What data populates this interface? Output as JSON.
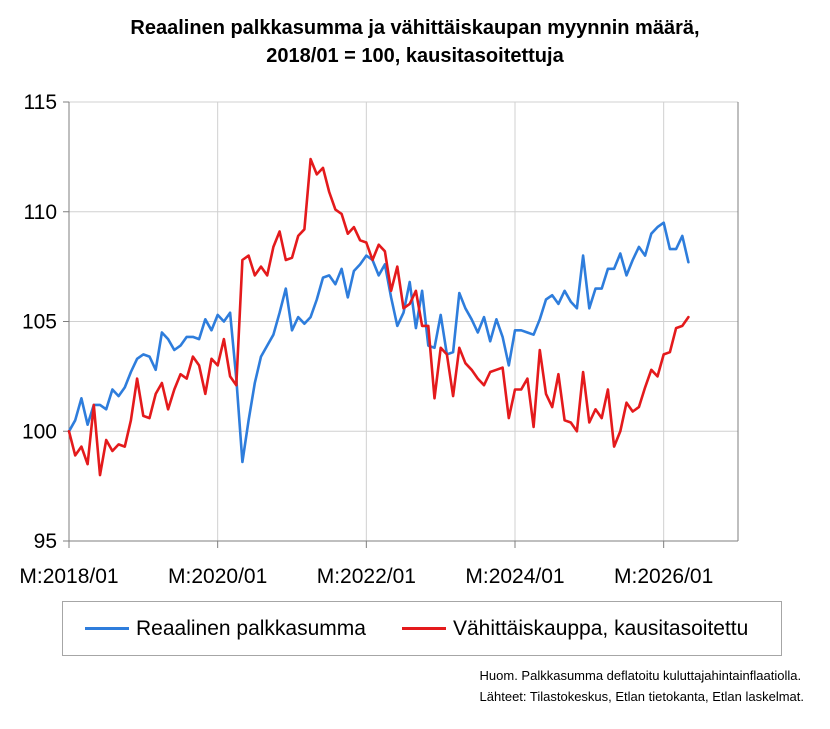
{
  "chart_data": {
    "type": "line",
    "title_lines": [
      "Reaalinen palkkasumma ja vähittäiskaupan myynnin määrä,",
      "2018/01 = 100, kausitasoitettuja"
    ],
    "xlabel": "",
    "ylabel": "",
    "ylim": [
      95,
      115
    ],
    "yticks": [
      95,
      100,
      105,
      110,
      115
    ],
    "xlim": [
      "2018-01",
      "2026-12"
    ],
    "xticks": [
      {
        "date": "2018-01",
        "label": "M:2018/01"
      },
      {
        "date": "2020-01",
        "label": "M:2020/01"
      },
      {
        "date": "2022-01",
        "label": "M:2022/01"
      },
      {
        "date": "2024-01",
        "label": "M:2024/01"
      },
      {
        "date": "2026-01",
        "label": "M:2026/01"
      }
    ],
    "grid": "horizontal",
    "legend_position": "bottom",
    "series": [
      {
        "name": "Reaalinen palkkasumma",
        "color": "#2e7ddc",
        "points": [
          [
            "2018-01",
            100.0
          ],
          [
            "2018-02",
            100.5
          ],
          [
            "2018-03",
            101.5
          ],
          [
            "2018-04",
            100.3
          ],
          [
            "2018-05",
            101.2
          ],
          [
            "2018-06",
            101.2
          ],
          [
            "2018-07",
            101.0
          ],
          [
            "2018-08",
            101.9
          ],
          [
            "2018-09",
            101.6
          ],
          [
            "2018-10",
            102.0
          ],
          [
            "2018-11",
            102.7
          ],
          [
            "2018-12",
            103.3
          ],
          [
            "2019-01",
            103.5
          ],
          [
            "2019-02",
            103.4
          ],
          [
            "2019-03",
            102.8
          ],
          [
            "2019-04",
            104.5
          ],
          [
            "2019-05",
            104.2
          ],
          [
            "2019-06",
            103.7
          ],
          [
            "2019-07",
            103.9
          ],
          [
            "2019-08",
            104.3
          ],
          [
            "2019-09",
            104.3
          ],
          [
            "2019-10",
            104.2
          ],
          [
            "2019-11",
            105.1
          ],
          [
            "2019-12",
            104.6
          ],
          [
            "2020-01",
            105.3
          ],
          [
            "2020-02",
            105.0
          ],
          [
            "2020-03",
            105.4
          ],
          [
            "2020-04",
            102.4
          ],
          [
            "2020-05",
            98.6
          ],
          [
            "2020-06",
            100.5
          ],
          [
            "2020-07",
            102.2
          ],
          [
            "2020-08",
            103.4
          ],
          [
            "2020-09",
            103.9
          ],
          [
            "2020-10",
            104.4
          ],
          [
            "2020-11",
            105.4
          ],
          [
            "2020-12",
            106.5
          ],
          [
            "2021-01",
            104.6
          ],
          [
            "2021-02",
            105.2
          ],
          [
            "2021-03",
            104.9
          ],
          [
            "2021-04",
            105.2
          ],
          [
            "2021-05",
            106.0
          ],
          [
            "2021-06",
            107.0
          ],
          [
            "2021-07",
            107.1
          ],
          [
            "2021-08",
            106.7
          ],
          [
            "2021-09",
            107.4
          ],
          [
            "2021-10",
            106.1
          ],
          [
            "2021-11",
            107.3
          ],
          [
            "2021-12",
            107.6
          ],
          [
            "2022-01",
            108.0
          ],
          [
            "2022-02",
            107.8
          ],
          [
            "2022-03",
            107.1
          ],
          [
            "2022-04",
            107.6
          ],
          [
            "2022-05",
            106.1
          ],
          [
            "2022-06",
            104.8
          ],
          [
            "2022-07",
            105.4
          ],
          [
            "2022-08",
            106.8
          ],
          [
            "2022-09",
            104.7
          ],
          [
            "2022-10",
            106.4
          ],
          [
            "2022-11",
            103.9
          ],
          [
            "2022-12",
            103.8
          ],
          [
            "2023-01",
            105.3
          ],
          [
            "2023-02",
            103.5
          ],
          [
            "2023-03",
            103.6
          ],
          [
            "2023-04",
            106.3
          ],
          [
            "2023-05",
            105.6
          ],
          [
            "2023-06",
            105.1
          ],
          [
            "2023-07",
            104.5
          ],
          [
            "2023-08",
            105.2
          ],
          [
            "2023-09",
            104.1
          ],
          [
            "2023-10",
            105.1
          ],
          [
            "2023-11",
            104.3
          ],
          [
            "2023-12",
            103.0
          ],
          [
            "2024-01",
            104.6
          ],
          [
            "2024-02",
            104.6
          ],
          [
            "2024-03",
            104.5
          ],
          [
            "2024-04",
            104.4
          ],
          [
            "2024-05",
            105.1
          ],
          [
            "2024-06",
            106.0
          ],
          [
            "2024-07",
            106.2
          ],
          [
            "2024-08",
            105.8
          ],
          [
            "2024-09",
            106.4
          ],
          [
            "2024-10",
            105.9
          ],
          [
            "2024-11",
            105.6
          ],
          [
            "2024-12",
            108.0
          ],
          [
            "2025-01",
            105.6
          ],
          [
            "2025-02",
            106.5
          ],
          [
            "2025-03",
            106.5
          ],
          [
            "2025-04",
            107.4
          ],
          [
            "2025-05",
            107.4
          ],
          [
            "2025-06",
            108.1
          ],
          [
            "2025-07",
            107.1
          ],
          [
            "2025-08",
            107.8
          ],
          [
            "2025-09",
            108.4
          ],
          [
            "2025-10",
            108.0
          ],
          [
            "2025-11",
            109.0
          ],
          [
            "2025-12",
            109.3
          ],
          [
            "2026-01",
            109.5
          ],
          [
            "2026-02",
            108.3
          ],
          [
            "2026-03",
            108.3
          ],
          [
            "2026-04",
            108.9
          ],
          [
            "2026-05",
            107.7
          ]
        ]
      },
      {
        "name": "Vähittäiskauppa, kausitasoitettu",
        "color": "#e41a1c",
        "points": [
          [
            "2018-01",
            100.0
          ],
          [
            "2018-02",
            98.9
          ],
          [
            "2018-03",
            99.3
          ],
          [
            "2018-04",
            98.5
          ],
          [
            "2018-05",
            101.2
          ],
          [
            "2018-06",
            98.0
          ],
          [
            "2018-07",
            99.6
          ],
          [
            "2018-08",
            99.1
          ],
          [
            "2018-09",
            99.4
          ],
          [
            "2018-10",
            99.3
          ],
          [
            "2018-11",
            100.5
          ],
          [
            "2018-12",
            102.4
          ],
          [
            "2019-01",
            100.7
          ],
          [
            "2019-02",
            100.6
          ],
          [
            "2019-03",
            101.7
          ],
          [
            "2019-04",
            102.2
          ],
          [
            "2019-05",
            101.0
          ],
          [
            "2019-06",
            101.9
          ],
          [
            "2019-07",
            102.6
          ],
          [
            "2019-08",
            102.4
          ],
          [
            "2019-09",
            103.4
          ],
          [
            "2019-10",
            103.0
          ],
          [
            "2019-11",
            101.7
          ],
          [
            "2019-12",
            103.3
          ],
          [
            "2020-01",
            103.0
          ],
          [
            "2020-02",
            104.2
          ],
          [
            "2020-03",
            102.5
          ],
          [
            "2020-04",
            102.1
          ],
          [
            "2020-05",
            107.8
          ],
          [
            "2020-06",
            108.0
          ],
          [
            "2020-07",
            107.1
          ],
          [
            "2020-08",
            107.5
          ],
          [
            "2020-09",
            107.1
          ],
          [
            "2020-10",
            108.4
          ],
          [
            "2020-11",
            109.1
          ],
          [
            "2020-12",
            107.8
          ],
          [
            "2021-01",
            107.9
          ],
          [
            "2021-02",
            108.9
          ],
          [
            "2021-03",
            109.2
          ],
          [
            "2021-04",
            112.4
          ],
          [
            "2021-05",
            111.7
          ],
          [
            "2021-06",
            112.0
          ],
          [
            "2021-07",
            110.9
          ],
          [
            "2021-08",
            110.1
          ],
          [
            "2021-09",
            109.9
          ],
          [
            "2021-10",
            109.0
          ],
          [
            "2021-11",
            109.3
          ],
          [
            "2021-12",
            108.7
          ],
          [
            "2022-01",
            108.6
          ],
          [
            "2022-02",
            107.8
          ],
          [
            "2022-03",
            108.5
          ],
          [
            "2022-04",
            108.2
          ],
          [
            "2022-05",
            106.4
          ],
          [
            "2022-06",
            107.5
          ],
          [
            "2022-07",
            105.6
          ],
          [
            "2022-08",
            105.8
          ],
          [
            "2022-09",
            106.4
          ],
          [
            "2022-10",
            104.8
          ],
          [
            "2022-11",
            104.8
          ],
          [
            "2022-12",
            101.5
          ],
          [
            "2023-01",
            103.8
          ],
          [
            "2023-02",
            103.5
          ],
          [
            "2023-03",
            101.6
          ],
          [
            "2023-04",
            103.8
          ],
          [
            "2023-05",
            103.1
          ],
          [
            "2023-06",
            102.8
          ],
          [
            "2023-07",
            102.4
          ],
          [
            "2023-08",
            102.1
          ],
          [
            "2023-09",
            102.7
          ],
          [
            "2023-10",
            102.8
          ],
          [
            "2023-11",
            102.9
          ],
          [
            "2023-12",
            100.6
          ],
          [
            "2024-01",
            101.9
          ],
          [
            "2024-02",
            101.9
          ],
          [
            "2024-03",
            102.4
          ],
          [
            "2024-04",
            100.2
          ],
          [
            "2024-05",
            103.7
          ],
          [
            "2024-06",
            101.7
          ],
          [
            "2024-07",
            101.1
          ],
          [
            "2024-08",
            102.6
          ],
          [
            "2024-09",
            100.5
          ],
          [
            "2024-10",
            100.4
          ],
          [
            "2024-11",
            100.0
          ],
          [
            "2024-12",
            102.7
          ],
          [
            "2025-01",
            100.4
          ],
          [
            "2025-02",
            101.0
          ],
          [
            "2025-03",
            100.6
          ],
          [
            "2025-04",
            101.9
          ],
          [
            "2025-05",
            99.3
          ],
          [
            "2025-06",
            100.0
          ],
          [
            "2025-07",
            101.3
          ],
          [
            "2025-08",
            100.9
          ],
          [
            "2025-09",
            101.1
          ],
          [
            "2025-10",
            102.0
          ],
          [
            "2025-11",
            102.8
          ],
          [
            "2025-12",
            102.5
          ],
          [
            "2026-01",
            103.5
          ],
          [
            "2026-02",
            103.6
          ],
          [
            "2026-03",
            104.7
          ],
          [
            "2026-04",
            104.8
          ],
          [
            "2026-05",
            105.2
          ]
        ]
      }
    ]
  },
  "notes": [
    "Huom. Palkkasumma deflatoitu kuluttajahintainflaatiolla.",
    "Lähteet: Tilastokeskus, Etlan tietokanta, Etlan laskelmat."
  ]
}
